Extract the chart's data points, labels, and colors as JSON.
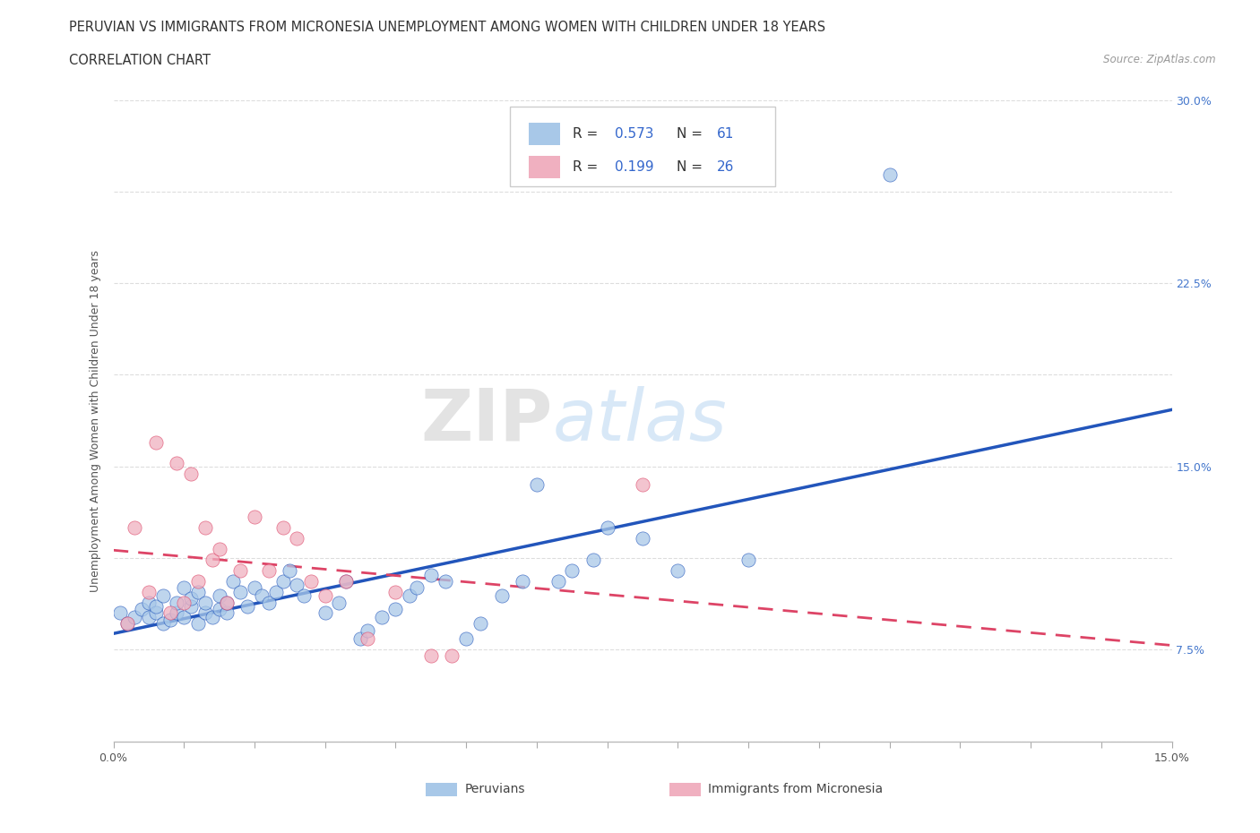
{
  "title_line1": "PERUVIAN VS IMMIGRANTS FROM MICRONESIA UNEMPLOYMENT AMONG WOMEN WITH CHILDREN UNDER 18 YEARS",
  "title_line2": "CORRELATION CHART",
  "source_text": "Source: ZipAtlas.com",
  "ylabel": "Unemployment Among Women with Children Under 18 years",
  "xlim": [
    0.0,
    0.15
  ],
  "ylim": [
    0.0,
    0.3
  ],
  "color_blue": "#a8c8e8",
  "color_pink": "#f0b0c0",
  "line_blue": "#2255bb",
  "line_pink": "#dd4466",
  "background_color": "#ffffff",
  "grid_color": "#dddddd",
  "title_fontsize": 11,
  "axis_label_fontsize": 9,
  "tick_fontsize": 9,
  "peruvian_x": [
    0.001,
    0.002,
    0.003,
    0.004,
    0.005,
    0.005,
    0.006,
    0.006,
    0.007,
    0.007,
    0.008,
    0.009,
    0.009,
    0.01,
    0.01,
    0.011,
    0.011,
    0.012,
    0.012,
    0.013,
    0.013,
    0.014,
    0.015,
    0.015,
    0.016,
    0.016,
    0.017,
    0.018,
    0.019,
    0.02,
    0.021,
    0.022,
    0.023,
    0.024,
    0.025,
    0.026,
    0.027,
    0.03,
    0.032,
    0.033,
    0.035,
    0.036,
    0.038,
    0.04,
    0.042,
    0.043,
    0.045,
    0.047,
    0.05,
    0.052,
    0.055,
    0.058,
    0.06,
    0.063,
    0.065,
    0.068,
    0.07,
    0.075,
    0.08,
    0.09,
    0.11
  ],
  "peruvian_y": [
    0.06,
    0.055,
    0.058,
    0.062,
    0.065,
    0.058,
    0.06,
    0.063,
    0.055,
    0.068,
    0.057,
    0.06,
    0.065,
    0.058,
    0.072,
    0.063,
    0.067,
    0.055,
    0.07,
    0.06,
    0.065,
    0.058,
    0.062,
    0.068,
    0.06,
    0.065,
    0.075,
    0.07,
    0.063,
    0.072,
    0.068,
    0.065,
    0.07,
    0.075,
    0.08,
    0.073,
    0.068,
    0.06,
    0.065,
    0.075,
    0.048,
    0.052,
    0.058,
    0.062,
    0.068,
    0.072,
    0.078,
    0.075,
    0.048,
    0.055,
    0.068,
    0.075,
    0.12,
    0.075,
    0.08,
    0.085,
    0.1,
    0.095,
    0.08,
    0.085,
    0.265
  ],
  "micronesia_x": [
    0.002,
    0.003,
    0.005,
    0.006,
    0.008,
    0.009,
    0.01,
    0.011,
    0.012,
    0.013,
    0.014,
    0.015,
    0.016,
    0.018,
    0.02,
    0.022,
    0.024,
    0.026,
    0.028,
    0.03,
    0.033,
    0.036,
    0.04,
    0.045,
    0.048,
    0.075
  ],
  "micronesia_y": [
    0.055,
    0.1,
    0.07,
    0.14,
    0.06,
    0.13,
    0.065,
    0.125,
    0.075,
    0.1,
    0.085,
    0.09,
    0.065,
    0.08,
    0.105,
    0.08,
    0.1,
    0.095,
    0.075,
    0.068,
    0.075,
    0.048,
    0.07,
    0.04,
    0.04,
    0.12
  ]
}
